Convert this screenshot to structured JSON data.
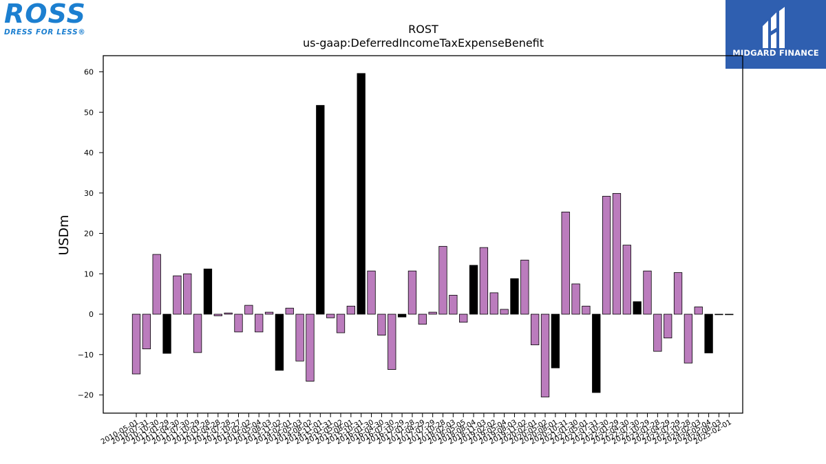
{
  "brand_left": {
    "wordmark": "ROSS",
    "tagline": "DRESS FOR LESS®",
    "color": "#1c7fd0"
  },
  "brand_right": {
    "name": "MIDGARD FINANCE",
    "background": "#2f5fb0"
  },
  "chart_data": {
    "type": "bar",
    "title": "ROST",
    "subtitle": "us-gaap:DeferredIncomeTaxExpenseBenefit",
    "xlabel": "",
    "ylabel": "USDm",
    "ylim": [
      -24.5,
      64
    ],
    "yticks": [
      -20,
      -10,
      0,
      10,
      20,
      30,
      40,
      50,
      60
    ],
    "grid": false,
    "colors": {
      "quarterly": "#bb7cbd",
      "annual": "#000000"
    },
    "categories": [
      "2010-05-01",
      "2010-07-31",
      "2010-10-30",
      "2011-01-29",
      "2011-04-30",
      "2011-07-30",
      "2011-10-29",
      "2012-01-28",
      "2012-04-28",
      "2012-07-28",
      "2012-10-27",
      "2013-02-02",
      "2013-05-04",
      "2013-08-03",
      "2013-11-02",
      "2014-02-01",
      "2014-05-03",
      "2014-08-02",
      "2014-11-01",
      "2015-01-31",
      "2015-05-02",
      "2015-08-01",
      "2015-10-31",
      "2016-01-30",
      "2016-04-30",
      "2016-07-30",
      "2016-10-29",
      "2017-01-28",
      "2017-04-29",
      "2017-07-29",
      "2017-10-28",
      "2018-02-03",
      "2018-05-05",
      "2018-08-04",
      "2018-11-03",
      "2019-02-02",
      "2019-05-04",
      "2019-08-03",
      "2019-11-02",
      "2020-02-01",
      "2020-05-02",
      "2020-08-01",
      "2020-10-31",
      "2021-01-30",
      "2021-05-01",
      "2021-07-31",
      "2021-10-30",
      "2022-01-29",
      "2022-04-30",
      "2022-07-30",
      "2022-10-29",
      "2023-01-28",
      "2023-04-29",
      "2023-07-29",
      "2023-10-28",
      "2024-02-03",
      "2024-05-04",
      "2024-08-03",
      "2025-02-01"
    ],
    "values": [
      -14.8,
      -8.6,
      14.8,
      -9.7,
      9.5,
      10.0,
      -9.5,
      11.2,
      -0.4,
      0.3,
      -4.4,
      2.2,
      -4.4,
      0.5,
      -13.9,
      1.5,
      -11.6,
      -16.6,
      51.7,
      -0.9,
      -4.6,
      2.0,
      59.6,
      10.7,
      -5.2,
      -13.7,
      -0.7,
      10.7,
      -2.5,
      0.5,
      16.8,
      4.7,
      -2.0,
      12.1,
      16.5,
      5.3,
      1.2,
      8.8,
      13.4,
      -7.6,
      -20.5,
      -13.3,
      25.3,
      7.5,
      2.0,
      -19.4,
      29.2,
      29.9,
      17.1,
      3.1,
      10.7,
      -9.2,
      -5.9,
      10.3,
      -12.1,
      1.8,
      -9.6,
      0,
      0
    ],
    "annual": [
      false,
      false,
      false,
      true,
      false,
      false,
      false,
      true,
      false,
      false,
      false,
      false,
      false,
      false,
      true,
      false,
      false,
      false,
      true,
      false,
      false,
      false,
      true,
      false,
      false,
      false,
      true,
      false,
      false,
      false,
      false,
      false,
      false,
      true,
      false,
      false,
      false,
      true,
      false,
      false,
      false,
      true,
      false,
      false,
      false,
      true,
      false,
      false,
      false,
      true,
      false,
      false,
      false,
      false,
      false,
      false,
      true,
      false,
      false
    ]
  }
}
